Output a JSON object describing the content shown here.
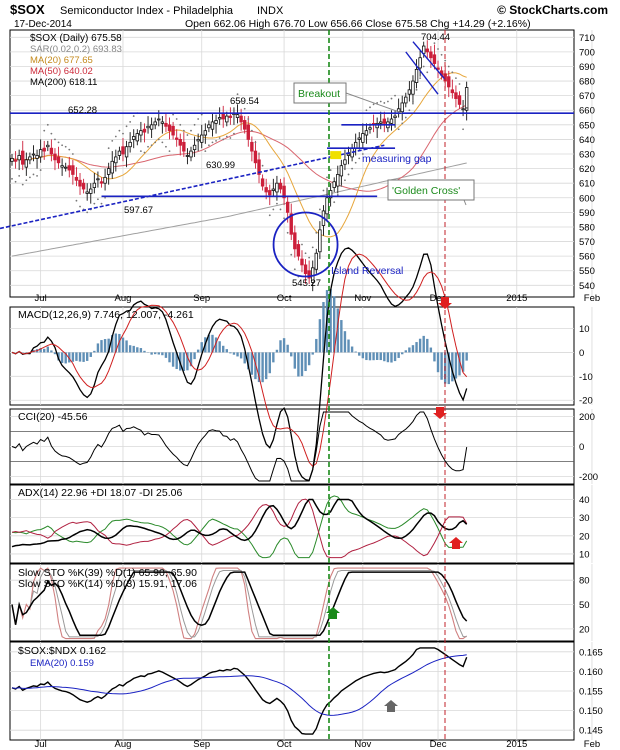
{
  "header": {
    "symbol": "$SOX",
    "name": "Semiconductor Index - Philadelphia",
    "exchange": "INDX",
    "date": "17-Dec-2014",
    "brand": "© StockCharts.com",
    "ohlc": "Open 662.06   High 676.70   Low 656.66   Close 675.58   Chg +14.29 (+2.16%)"
  },
  "legend": {
    "main": "$SOX (Daily) 675.58",
    "sar": "SAR(0.02,0.2) 693.83",
    "ma20": "MA(20) 677.65",
    "ma50": "MA(50) 640.02",
    "ma200": "MA(200) 618.11"
  },
  "colors": {
    "up": "#111111",
    "down": "#cc1f3a",
    "ma20": "#e7a63b",
    "ma50": "#d9666f",
    "ma200": "#a0a0a0",
    "blue": "#1a22c2",
    "green": "#1a8a1a",
    "grid": "#d8d8d8",
    "macd_hist": "#5f8fb6",
    "cci_fill_pos": "#6f8f6f",
    "cci_fill_neg": "#8c6060"
  },
  "chart_data": {
    "type": "line",
    "months": [
      "Jul",
      "Aug",
      "Sep",
      "Oct",
      "Nov",
      "Dec",
      "2015",
      "Feb"
    ],
    "month_day_index": [
      8,
      31,
      53,
      76,
      98,
      119,
      141,
      162
    ],
    "price": {
      "ylim": [
        532,
        715
      ],
      "ticks": [
        540,
        550,
        560,
        570,
        580,
        590,
        600,
        610,
        620,
        630,
        640,
        650,
        660,
        670,
        680,
        690,
        700,
        710
      ],
      "closes": [
        627,
        625,
        629,
        623,
        626,
        628,
        630,
        629,
        633,
        632,
        636,
        630,
        626,
        624,
        622,
        621,
        619,
        616,
        612,
        608,
        606,
        604,
        606,
        610,
        613,
        610,
        614,
        620,
        625,
        628,
        632,
        630,
        635,
        638,
        642,
        644,
        646,
        645,
        649,
        650,
        652,
        654,
        652,
        649,
        646,
        643,
        640,
        636,
        632,
        629,
        632,
        636,
        640,
        643,
        646,
        650,
        652,
        653,
        655,
        654,
        656,
        655,
        658,
        657,
        652,
        647,
        640,
        632,
        624,
        616,
        608,
        604,
        602,
        606,
        610,
        606,
        600,
        590,
        575,
        565,
        560,
        554,
        548,
        545,
        552,
        562,
        578,
        591,
        600,
        605,
        611,
        616,
        622,
        626,
        630,
        634,
        638,
        641,
        644,
        646,
        648,
        650,
        651,
        652,
        651,
        652,
        654,
        656,
        661,
        665,
        669,
        674,
        680,
        688,
        696,
        704,
        700,
        696,
        692,
        688,
        684,
        680,
        676,
        672,
        668,
        664,
        661,
        675.58
      ],
      "annotations": [
        "652.28",
        "659.54",
        "630.99",
        "597.67",
        "545.27",
        "704.44"
      ],
      "labels": {
        "breakout": "Breakout",
        "measuring_gap": "measuring gap",
        "golden_cross": "'Golden Cross'",
        "island_reversal": "Island Reversal"
      }
    },
    "macd": {
      "legend": "MACD(12,26,9) 7.746, 12.007, -4.261",
      "ylim": [
        -22,
        19
      ],
      "ticks": [
        -20,
        -10,
        0,
        10
      ]
    },
    "cci": {
      "legend": "CCI(20) -45.56",
      "ylim": [
        -250,
        250
      ],
      "ticks": [
        -200,
        0,
        200
      ]
    },
    "adx": {
      "legend": "ADX(14) 22.96  +DI 18.07  -DI 25.06",
      "ylim": [
        5,
        48
      ],
      "ticks": [
        10,
        20,
        30,
        40
      ]
    },
    "sto": {
      "legend1": "Slow STO %K(39) %D(1) 65.90, 65.90",
      "legend2": "Slow STO %K(14) %D(3) 15.91, 17.06",
      "ylim": [
        5,
        100
      ],
      "ticks": [
        20,
        50,
        80
      ]
    },
    "ratio": {
      "legend": "$SOX:$NDX 0.162",
      "ema_legend": "EMA(20) 0.159",
      "ylim": [
        0.1425,
        0.1675
      ],
      "ticks": [
        0.145,
        0.15,
        0.155,
        0.16,
        0.165
      ],
      "tick_labels": [
        "0.145",
        "0.150",
        "0.155",
        "0.160",
        "0.165"
      ]
    },
    "price_ticks": [
      "540",
      "550",
      "560",
      "570",
      "580",
      "590",
      "600",
      "610",
      "620",
      "630",
      "640",
      "650",
      "660",
      "670",
      "680",
      "690",
      "700",
      "710"
    ],
    "macd_ticks": [
      "-20",
      "-10",
      "0",
      "10"
    ],
    "cci_ticks": [
      "-200",
      "0",
      "200"
    ],
    "adx_ticks": [
      "10",
      "20",
      "30",
      "40"
    ],
    "sto_ticks": [
      "20",
      "50",
      "80"
    ]
  }
}
